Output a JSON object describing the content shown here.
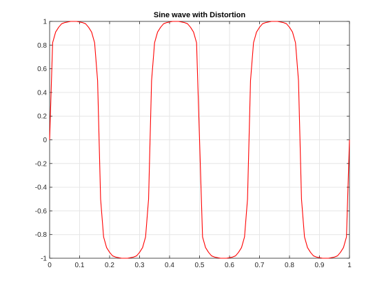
{
  "chart_data": {
    "type": "line",
    "title": "Sine wave with Distortion",
    "xlabel": "",
    "ylabel": "",
    "xlim": [
      0,
      1
    ],
    "ylim": [
      -1,
      1
    ],
    "xticks": [
      0,
      0.1,
      0.2,
      0.3,
      0.4,
      0.5,
      0.6,
      0.7,
      0.8,
      0.9,
      1
    ],
    "xtick_labels": [
      "0",
      "0.1",
      "0.2",
      "0.3",
      "0.4",
      "0.5",
      "0.6",
      "0.7",
      "0.8",
      "0.9",
      "1"
    ],
    "yticks": [
      1,
      0.8,
      0.6,
      0.4,
      0.2,
      0,
      -0.2,
      -0.4,
      -0.6,
      -0.8,
      -1
    ],
    "ytick_labels": [
      "1",
      "0.8",
      "0.6",
      "0.4",
      "0.2",
      "0",
      "-0.2",
      "-0.4",
      "-0.6",
      "-0.8",
      "-1"
    ],
    "grid": true,
    "legend": "none",
    "series": [
      {
        "color": "#ff0000",
        "x": [
          0,
          0.01,
          0.02,
          0.03,
          0.04,
          0.05,
          0.06,
          0.07,
          0.08,
          0.09,
          0.1,
          0.11,
          0.12,
          0.13,
          0.14,
          0.15,
          0.16,
          0.17,
          0.18,
          0.19,
          0.2,
          0.21,
          0.22,
          0.23,
          0.24,
          0.25,
          0.26,
          0.27,
          0.28,
          0.29,
          0.3,
          0.31,
          0.32,
          0.33,
          0.34,
          0.35,
          0.36,
          0.37,
          0.38,
          0.39,
          0.4,
          0.41,
          0.42,
          0.43,
          0.44,
          0.45,
          0.46,
          0.47,
          0.48,
          0.49,
          0.5,
          0.51,
          0.52,
          0.53,
          0.54,
          0.55,
          0.56,
          0.57,
          0.58,
          0.59,
          0.6,
          0.61,
          0.62,
          0.63,
          0.64,
          0.65,
          0.66,
          0.67,
          0.68,
          0.69,
          0.7,
          0.71,
          0.72,
          0.73,
          0.74,
          0.75,
          0.76,
          0.77,
          0.78,
          0.79,
          0.8,
          0.81,
          0.82,
          0.83,
          0.84,
          0.85,
          0.86,
          0.87,
          0.88,
          0.89,
          0.9,
          0.91,
          0.92,
          0.93,
          0.94,
          0.95,
          0.96,
          0.97,
          0.98,
          0.99,
          1
        ],
        "y": [
          0,
          0.82,
          0.91,
          0.95,
          0.98,
          0.99,
          0.995,
          1,
          1,
          1,
          0.995,
          0.99,
          0.98,
          0.95,
          0.91,
          0.82,
          0.5,
          -0.5,
          -0.82,
          -0.91,
          -0.95,
          -0.98,
          -0.99,
          -0.995,
          -1,
          -1,
          -1,
          -0.995,
          -0.99,
          -0.98,
          -0.95,
          -0.91,
          -0.82,
          -0.5,
          0.5,
          0.82,
          0.91,
          0.95,
          0.98,
          0.99,
          0.995,
          1,
          1,
          1,
          0.995,
          0.99,
          0.98,
          0.95,
          0.91,
          0.82,
          0,
          -0.82,
          -0.91,
          -0.95,
          -0.98,
          -0.99,
          -0.995,
          -1,
          -1,
          -1,
          -0.995,
          -0.99,
          -0.98,
          -0.95,
          -0.91,
          -0.82,
          -0.5,
          0.5,
          0.82,
          0.91,
          0.95,
          0.98,
          0.99,
          0.995,
          1,
          1,
          1,
          0.995,
          0.99,
          0.98,
          0.95,
          0.91,
          0.82,
          0.5,
          -0.5,
          -0.82,
          -0.91,
          -0.95,
          -0.98,
          -0.99,
          -0.995,
          -1,
          -1,
          -1,
          -0.995,
          -0.99,
          -0.98,
          -0.95,
          -0.91,
          -0.82,
          0
        ]
      }
    ]
  }
}
